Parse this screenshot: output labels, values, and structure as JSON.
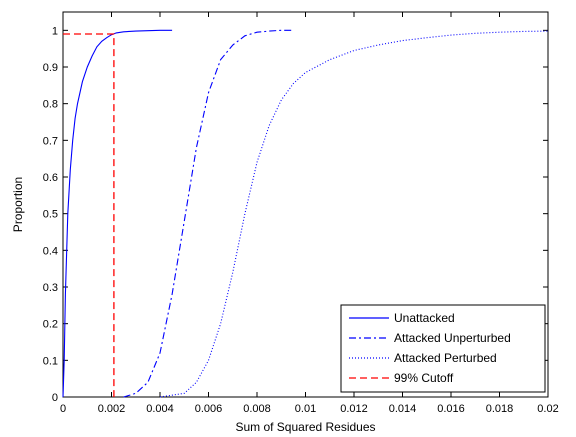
{
  "chart_data": {
    "type": "line",
    "title": "",
    "xlabel": "Sum of Squared Residues",
    "ylabel": "Proportion",
    "xlim": [
      0,
      0.02
    ],
    "ylim": [
      0,
      1.05
    ],
    "xticks": [
      0,
      0.002,
      0.004,
      0.006,
      0.008,
      0.01,
      0.012,
      0.014,
      0.016,
      0.018,
      0.02
    ],
    "xtick_labels": [
      "0",
      "0.002",
      "0.004",
      "0.006",
      "0.008",
      "0.01",
      "0.012",
      "0.014",
      "0.016",
      "0.018",
      "0.02"
    ],
    "yticks": [
      0,
      0.1,
      0.2,
      0.3,
      0.4,
      0.5,
      0.6,
      0.7,
      0.8,
      0.9,
      1
    ],
    "ytick_labels": [
      "0",
      "0.1",
      "0.2",
      "0.3",
      "0.4",
      "0.5",
      "0.6",
      "0.7",
      "0.8",
      "0.9",
      "1"
    ],
    "grid": false,
    "legend_position": "bottom-right",
    "series": [
      {
        "name": "Unattacked",
        "color": "#0000ff",
        "dash": "solid",
        "x": [
          0,
          5e-05,
          0.0001,
          0.0002,
          0.0003,
          0.0004,
          0.0005,
          0.0006,
          0.0008,
          0.001,
          0.0012,
          0.0014,
          0.0016,
          0.0018,
          0.002,
          0.0022,
          0.0025,
          0.003,
          0.0035,
          0.004,
          0.0045
        ],
        "y": [
          0,
          0.1,
          0.28,
          0.5,
          0.62,
          0.7,
          0.76,
          0.8,
          0.86,
          0.9,
          0.93,
          0.955,
          0.97,
          0.98,
          0.988,
          0.993,
          0.996,
          0.998,
          0.999,
          1,
          1
        ]
      },
      {
        "name": "Attacked Unperturbed",
        "color": "#0000ff",
        "dash": "dashdot",
        "x": [
          0.0025,
          0.003,
          0.0035,
          0.004,
          0.0045,
          0.005,
          0.0055,
          0.006,
          0.0065,
          0.007,
          0.0075,
          0.008,
          0.0085,
          0.009,
          0.0095
        ],
        "y": [
          0,
          0.01,
          0.04,
          0.12,
          0.28,
          0.48,
          0.68,
          0.83,
          0.92,
          0.96,
          0.985,
          0.995,
          0.998,
          1,
          1
        ]
      },
      {
        "name": "Attacked Perturbed",
        "color": "#0000ff",
        "dash": "dotted",
        "x": [
          0.004,
          0.005,
          0.0055,
          0.006,
          0.0065,
          0.007,
          0.0075,
          0.008,
          0.0085,
          0.009,
          0.0095,
          0.01,
          0.011,
          0.012,
          0.013,
          0.014,
          0.015,
          0.016,
          0.017,
          0.018,
          0.019,
          0.02
        ],
        "y": [
          0,
          0.01,
          0.04,
          0.1,
          0.2,
          0.34,
          0.5,
          0.64,
          0.74,
          0.81,
          0.855,
          0.885,
          0.92,
          0.945,
          0.96,
          0.972,
          0.98,
          0.987,
          0.992,
          0.995,
          0.997,
          0.998
        ]
      },
      {
        "name": "99% Cutoff",
        "color": "#ff0000",
        "dash": "dashed",
        "x": [
          0,
          0.0021,
          0.0021
        ],
        "y": [
          0.99,
          0.99,
          0
        ]
      }
    ]
  }
}
